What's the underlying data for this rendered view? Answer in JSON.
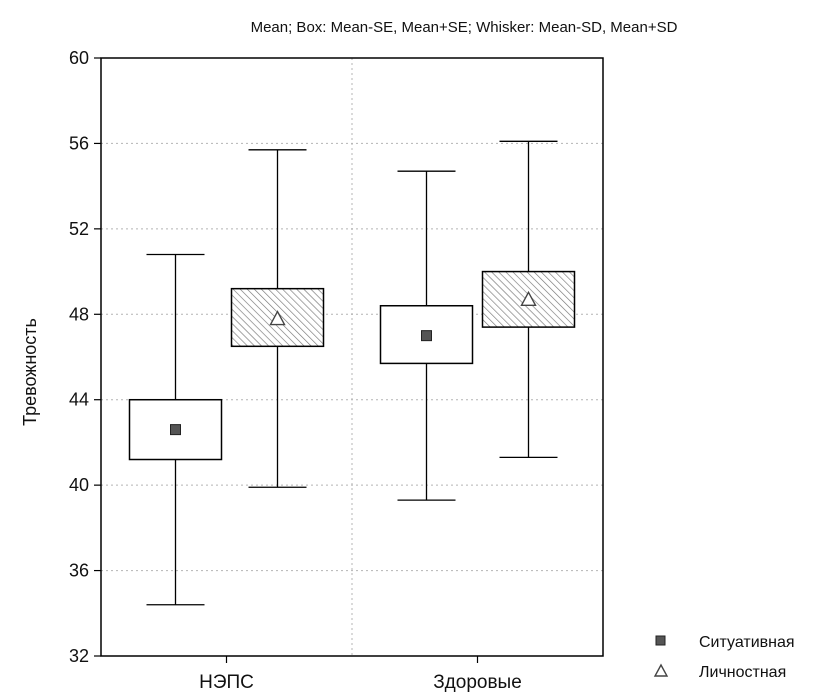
{
  "chart_data": {
    "type": "box",
    "title": "Mean; Box: Mean-SE, Mean+SE; Whisker: Mean-SD, Mean+SD",
    "ylabel": "Тревожность",
    "xlabel": "",
    "ylim": [
      32,
      60
    ],
    "yticks": [
      32,
      36,
      40,
      44,
      48,
      52,
      56,
      60
    ],
    "categories": [
      "НЭПС",
      "Здоровые"
    ],
    "grid": true,
    "legend_position": "bottom-right",
    "series": [
      {
        "name": "Ситуативная",
        "marker": "square",
        "box_fill": "#ffffff",
        "mean": [
          42.6,
          47.0
        ],
        "box_low": [
          41.2,
          45.7
        ],
        "box_high": [
          44.0,
          48.4
        ],
        "whisker_low": [
          34.4,
          39.3
        ],
        "whisker_high": [
          50.8,
          54.7
        ]
      },
      {
        "name": "Личностная",
        "marker": "triangle",
        "box_fill": "hatched",
        "mean": [
          47.8,
          48.7
        ],
        "box_low": [
          46.5,
          47.4
        ],
        "box_high": [
          49.2,
          50.0
        ],
        "whisker_low": [
          39.9,
          41.3
        ],
        "whisker_high": [
          55.7,
          56.1
        ]
      }
    ]
  },
  "colors": {
    "axis": "#000000",
    "grid": "#b4b4b4",
    "marker_fill": "#555555",
    "hatch": "#777777"
  }
}
